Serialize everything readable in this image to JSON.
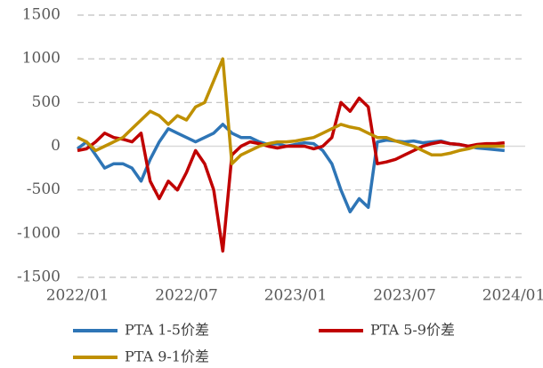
{
  "chart_data": {
    "type": "line",
    "categories": [
      "2022/01",
      null,
      null,
      null,
      null,
      null,
      null,
      null,
      null,
      null,
      null,
      null,
      "2022/07",
      null,
      null,
      null,
      null,
      null,
      null,
      null,
      null,
      null,
      null,
      null,
      "2023/01",
      null,
      null,
      null,
      null,
      null,
      null,
      null,
      null,
      null,
      null,
      null,
      "2023/07",
      null,
      null,
      null,
      null,
      null,
      null,
      null,
      null,
      null,
      null,
      null,
      "2024/01"
    ],
    "series": [
      {
        "name": "PTA 1-5价差",
        "color": "#2e75b6",
        "values": [
          -30,
          50,
          -100,
          -250,
          -200,
          -200,
          -250,
          -400,
          -150,
          50,
          200,
          150,
          100,
          50,
          100,
          150,
          250,
          150,
          100,
          100,
          50,
          20,
          30,
          0,
          20,
          40,
          30,
          -50,
          -200,
          -500,
          -750,
          -600,
          -700,
          50,
          70,
          60,
          50,
          60,
          40,
          50,
          60,
          30,
          20,
          0,
          -20,
          -30,
          -40,
          -50,
          null
        ]
      },
      {
        "name": "PTA 5-9价差",
        "color": "#c00000",
        "values": [
          -50,
          -30,
          50,
          150,
          100,
          80,
          50,
          150,
          -400,
          -600,
          -400,
          -500,
          -300,
          -50,
          -200,
          -500,
          -1200,
          -100,
          0,
          50,
          30,
          0,
          -20,
          0,
          0,
          0,
          -30,
          0,
          100,
          500,
          400,
          550,
          450,
          -200,
          -180,
          -150,
          -100,
          -50,
          0,
          30,
          50,
          30,
          20,
          0,
          20,
          30,
          30,
          40,
          null
        ]
      },
      {
        "name": "PTA 9-1价差",
        "color": "#bf9000",
        "values": [
          100,
          50,
          -50,
          0,
          50,
          100,
          200,
          300,
          400,
          350,
          250,
          350,
          300,
          450,
          500,
          750,
          1000,
          -200,
          -100,
          -50,
          0,
          30,
          50,
          50,
          60,
          80,
          100,
          150,
          200,
          250,
          220,
          200,
          150,
          100,
          100,
          60,
          30,
          0,
          -50,
          -100,
          -100,
          -80,
          -50,
          -30,
          0,
          0,
          0,
          0,
          null
        ]
      }
    ],
    "ylim": [
      -1500,
      1500
    ],
    "yticks": [
      -1500,
      -1000,
      -500,
      0,
      500,
      1000,
      1500
    ],
    "grid": true
  }
}
